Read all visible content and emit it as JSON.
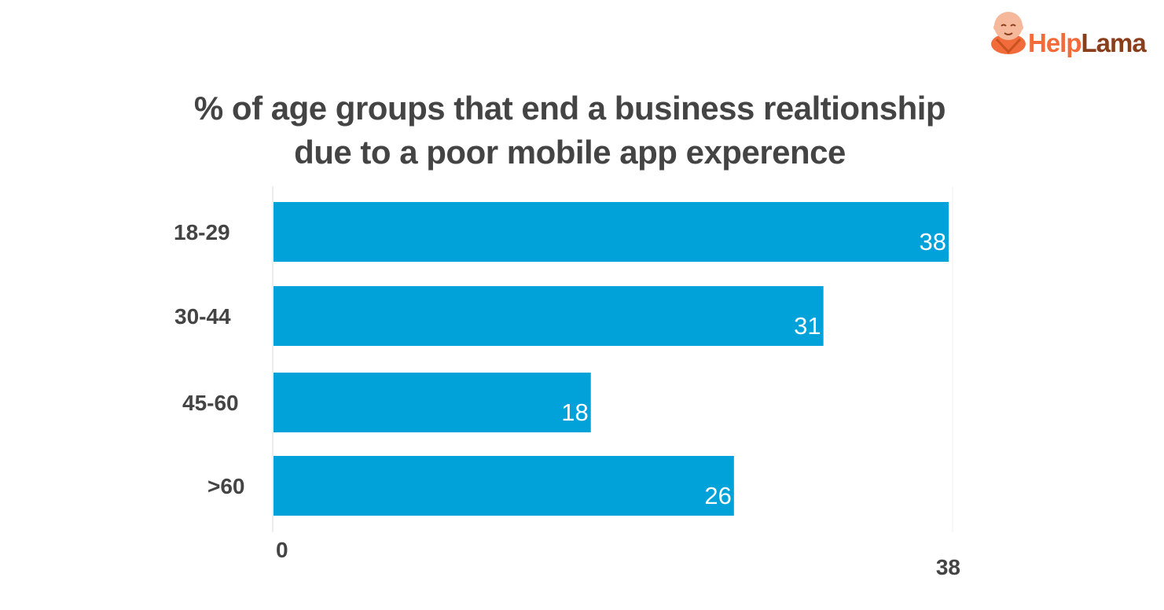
{
  "brand": {
    "logo_part1": "Help",
    "logo_part2": "Lama",
    "logo_icon": "monk-mascot-icon",
    "color_primary": "#f26b3a",
    "color_secondary": "#8a3f1c"
  },
  "chart_data": {
    "type": "bar",
    "orientation": "horizontal",
    "title_line1": "% of age groups that end a business realtionship",
    "title_line2": "due to a poor mobile app experence",
    "categories": [
      "18-29",
      "30-44",
      "45-60",
      ">60"
    ],
    "values": [
      38,
      31,
      18,
      26
    ],
    "data_labels": [
      "38",
      "31",
      "18",
      "26"
    ],
    "xlim": [
      0,
      38
    ],
    "x_tick_labels": [
      "0",
      "38"
    ],
    "xlabel": "",
    "ylabel": "",
    "bar_color": "#00a2d9",
    "grid": false,
    "legend": "none"
  }
}
